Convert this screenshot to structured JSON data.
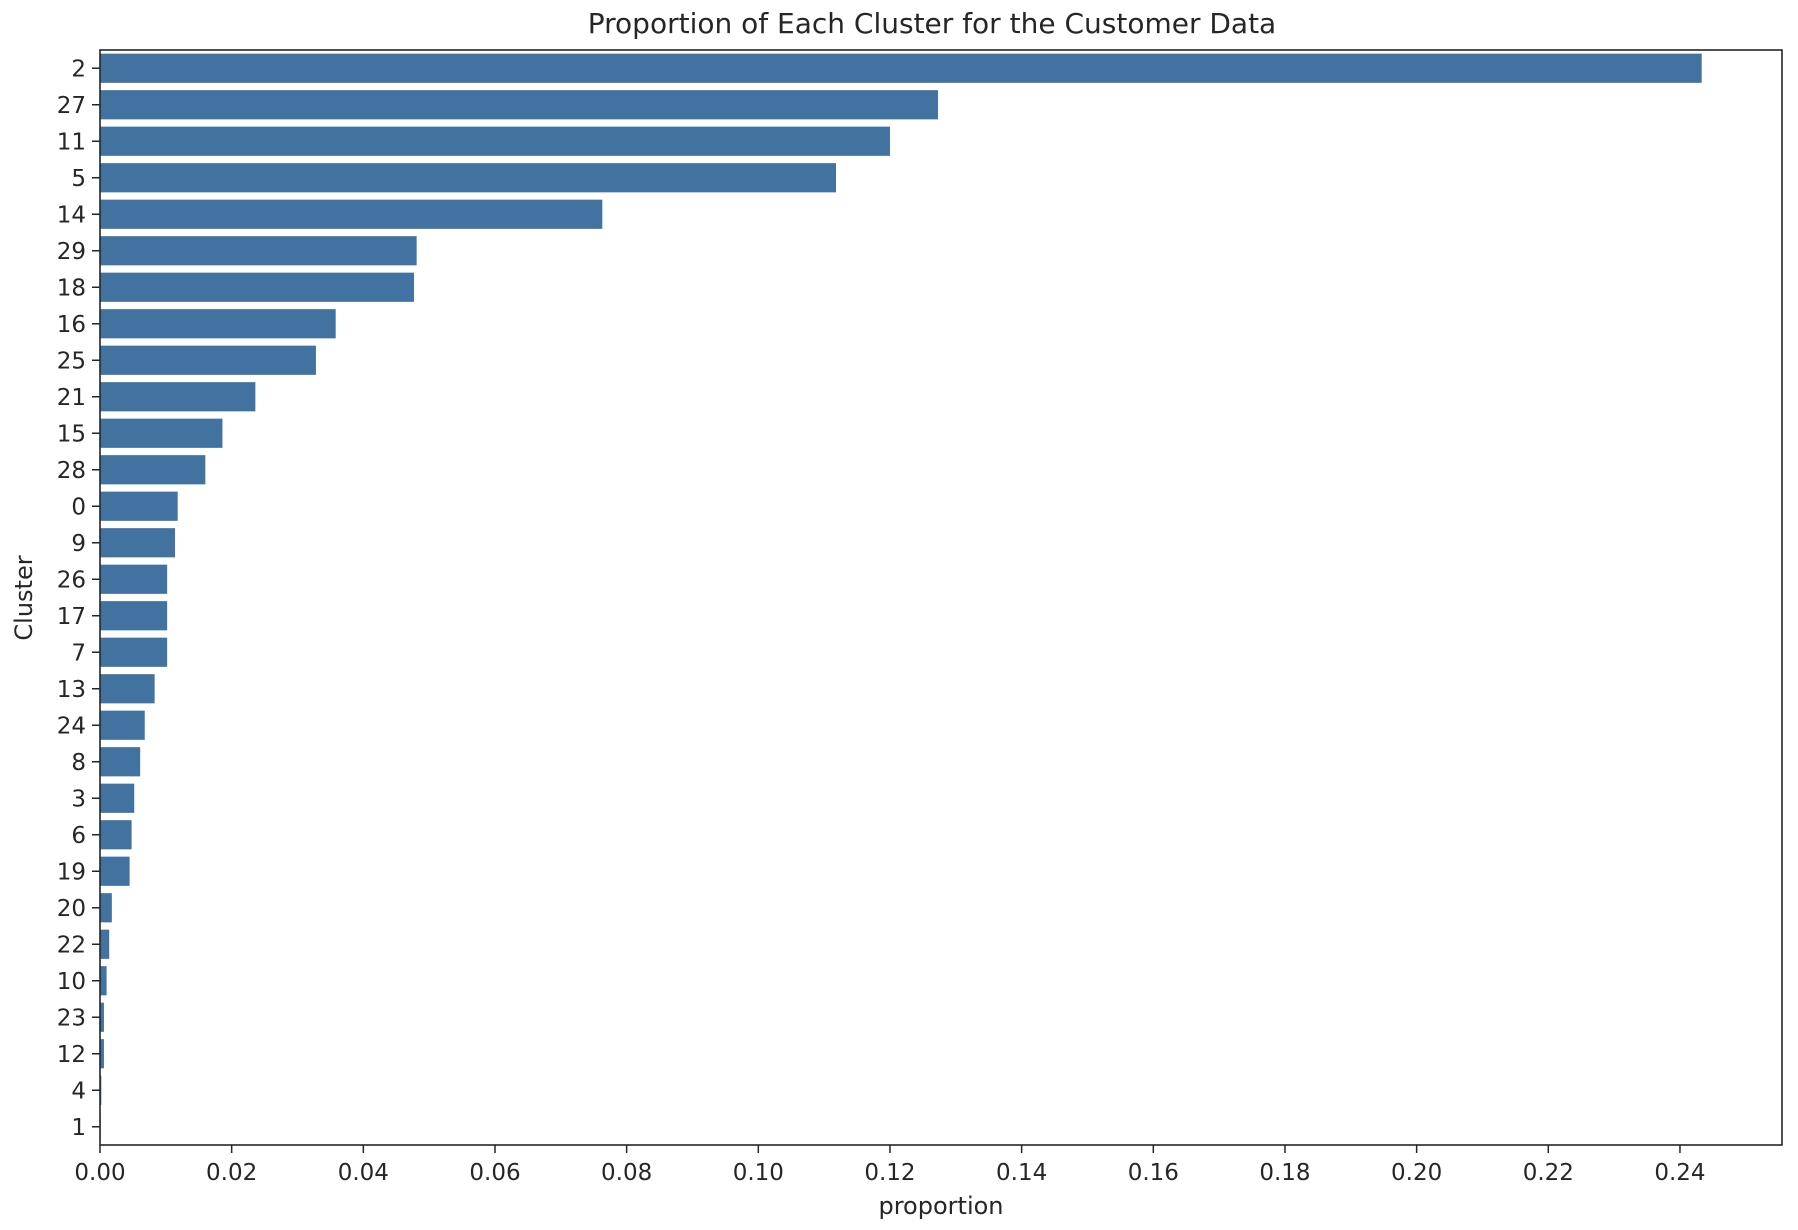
{
  "chart_data": {
    "type": "bar",
    "orientation": "horizontal",
    "title": "Proportion of Each Cluster for the Customer Data",
    "xlabel": "proportion",
    "ylabel": "Cluster",
    "categories": [
      "2",
      "27",
      "11",
      "5",
      "14",
      "29",
      "18",
      "16",
      "25",
      "21",
      "15",
      "28",
      "0",
      "9",
      "26",
      "17",
      "7",
      "13",
      "24",
      "8",
      "3",
      "6",
      "19",
      "20",
      "22",
      "10",
      "23",
      "12",
      "4",
      "1"
    ],
    "values": [
      0.2433,
      0.1273,
      0.12,
      0.1118,
      0.0763,
      0.0481,
      0.0477,
      0.0358,
      0.0328,
      0.0236,
      0.0186,
      0.016,
      0.0118,
      0.0114,
      0.0102,
      0.0102,
      0.0102,
      0.0083,
      0.0068,
      0.0061,
      0.0052,
      0.0048,
      0.0045,
      0.0018,
      0.0014,
      0.001,
      0.0006,
      0.0006,
      0.0002,
      0.0001
    ],
    "xticks": [
      "0.00",
      "0.02",
      "0.04",
      "0.06",
      "0.08",
      "0.10",
      "0.12",
      "0.14",
      "0.16",
      "0.18",
      "0.20",
      "0.22",
      "0.24"
    ],
    "xlim": [
      0,
      0.2555
    ],
    "grid": false,
    "bar_color": "#4273a0",
    "axis_color": "#262626"
  }
}
